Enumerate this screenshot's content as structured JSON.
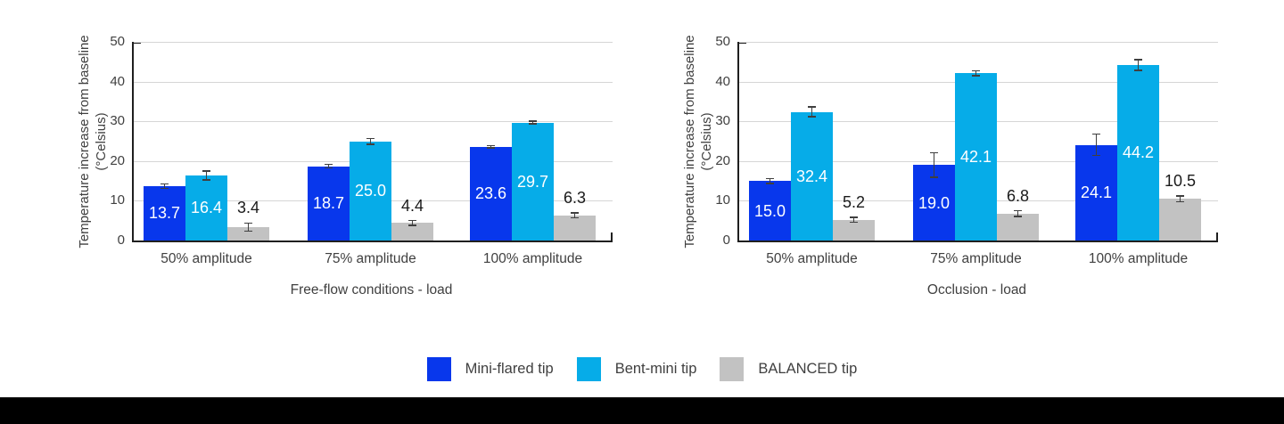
{
  "page": {
    "background": "#ffffff",
    "footer_bar_color": "#000000"
  },
  "colors": {
    "series_mini_flared": "#0837EC",
    "series_bent_mini": "#06ACE8",
    "series_balanced": "#C2C2C2",
    "axis_line": "#1f1f1f",
    "gridline": "#d6d6d6",
    "axis_text": "#404040"
  },
  "legend": {
    "items": [
      {
        "label": "Mini-flared tip",
        "color": "#0837EC"
      },
      {
        "label": "Bent-mini tip",
        "color": "#06ACE8"
      },
      {
        "label": "BALANCED tip",
        "color": "#C2C2C2"
      }
    ]
  },
  "chart_data": [
    {
      "type": "bar",
      "title": "",
      "xlabel": "Free-flow conditions - load",
      "ylabel": "Temperature increase from baseline (°Celsius)",
      "categories": [
        "50% amplitude",
        "75% amplitude",
        "100% amplitude"
      ],
      "series": [
        {
          "name": "Mini-flared tip",
          "color": "#0837EC",
          "values": [
            13.7,
            18.7,
            23.6
          ],
          "labels": [
            "13.7",
            "18.7",
            "23.6"
          ],
          "errors": [
            0.7,
            0.6,
            0.5
          ],
          "label_style": "inside-white"
        },
        {
          "name": "Bent-mini tip",
          "color": "#06ACE8",
          "values": [
            16.4,
            25.0,
            29.7
          ],
          "labels": [
            "16.4",
            "25.0",
            "29.7"
          ],
          "errors": [
            1.3,
            0.9,
            0.5
          ],
          "label_style": "inside-white"
        },
        {
          "name": "BALANCED tip",
          "color": "#C2C2C2",
          "values": [
            3.4,
            4.4,
            6.3
          ],
          "labels": [
            "3.4",
            "4.4",
            "6.3"
          ],
          "errors": [
            1.2,
            0.8,
            0.8
          ],
          "label_style": "above-dark"
        }
      ],
      "ylim": [
        0,
        50
      ],
      "yticks": [
        0,
        10,
        20,
        30,
        40,
        50
      ],
      "grid": true,
      "legend_position": "shared-bottom"
    },
    {
      "type": "bar",
      "title": "",
      "xlabel": "Occlusion - load",
      "ylabel": "Temperature increase from baseline (°Celsius)",
      "categories": [
        "50% amplitude",
        "75% amplitude",
        "100% amplitude"
      ],
      "series": [
        {
          "name": "Mini-flared tip",
          "color": "#0837EC",
          "values": [
            15.0,
            19.0,
            24.1
          ],
          "labels": [
            "15.0",
            "19.0",
            "24.1"
          ],
          "errors": [
            0.8,
            3.3,
            2.9
          ],
          "label_style": "inside-white"
        },
        {
          "name": "Bent-mini tip",
          "color": "#06ACE8",
          "values": [
            32.4,
            42.1,
            44.2
          ],
          "labels": [
            "32.4",
            "42.1",
            "44.2"
          ],
          "errors": [
            1.4,
            0.8,
            1.5
          ],
          "label_style": "inside-white"
        },
        {
          "name": "BALANCED tip",
          "color": "#C2C2C2",
          "values": [
            5.2,
            6.8,
            10.5
          ],
          "labels": [
            "5.2",
            "6.8",
            "10.5"
          ],
          "errors": [
            0.8,
            0.9,
            0.9
          ],
          "label_style": "above-dark"
        }
      ],
      "ylim": [
        0,
        50
      ],
      "yticks": [
        0,
        10,
        20,
        30,
        40,
        50
      ],
      "grid": true,
      "legend_position": "shared-bottom"
    }
  ]
}
